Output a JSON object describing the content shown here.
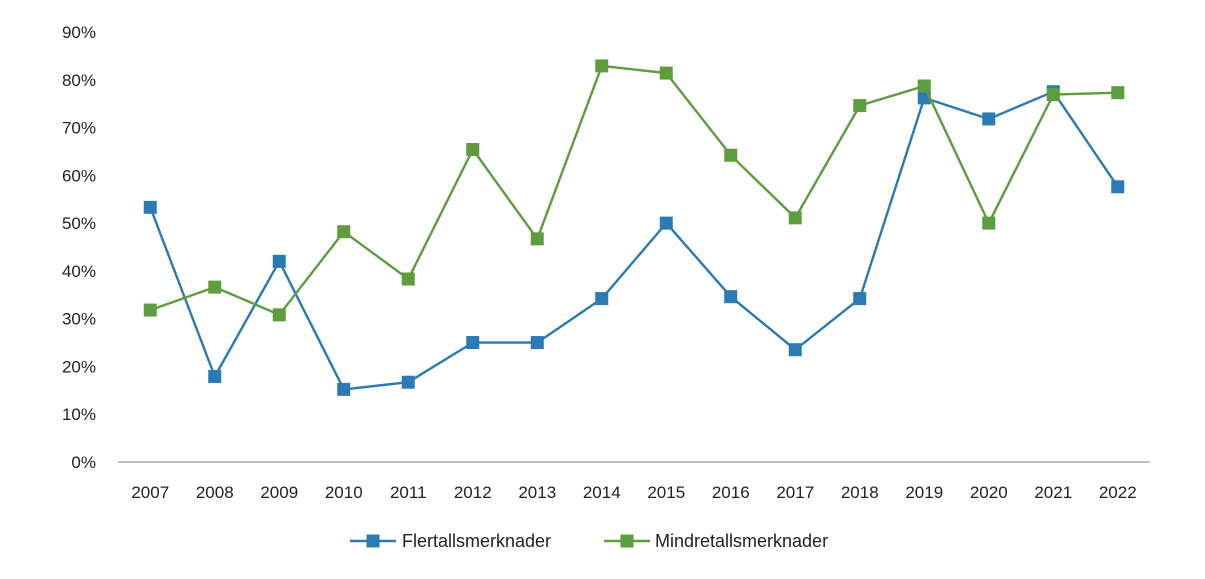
{
  "chart_data": {
    "type": "line",
    "title": "",
    "xlabel": "",
    "ylabel": "",
    "x": [
      "2007",
      "2008",
      "2009",
      "2010",
      "2011",
      "2012",
      "2013",
      "2014",
      "2015",
      "2016",
      "2017",
      "2018",
      "2019",
      "2020",
      "2021",
      "2022"
    ],
    "ylim": [
      0,
      90
    ],
    "yticks": [
      0,
      10,
      20,
      30,
      40,
      50,
      60,
      70,
      80,
      90
    ],
    "ytick_labels": [
      "0%",
      "10%",
      "20%",
      "30%",
      "40%",
      "50%",
      "60%",
      "70%",
      "80%",
      "90%"
    ],
    "grid": false,
    "legend_position": "bottom",
    "series": [
      {
        "name": "Flertallsmerknader",
        "color": "#2a7ab5",
        "marker": "square",
        "values": [
          53.3,
          17.9,
          42.0,
          15.2,
          16.7,
          25.0,
          25.0,
          34.2,
          50.0,
          34.6,
          23.5,
          34.2,
          76.2,
          71.8,
          77.5,
          57.6
        ]
      },
      {
        "name": "Mindretallsmerknader",
        "color": "#5e9d3e",
        "marker": "square",
        "values": [
          31.8,
          36.6,
          30.8,
          48.2,
          38.3,
          65.4,
          46.7,
          82.9,
          81.4,
          64.2,
          51.1,
          74.6,
          78.7,
          50.0,
          76.9,
          77.3
        ]
      }
    ]
  }
}
